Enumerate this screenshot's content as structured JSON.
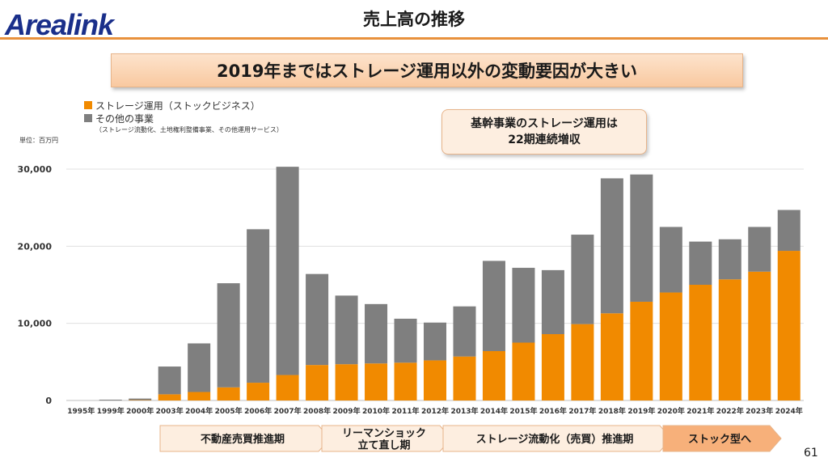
{
  "header": {
    "logo_text": "Arealink",
    "title": "売上高の推移",
    "headline": "2019年まではストレージ運用以外の変動要因が大きい",
    "accent_color": "#e8913c"
  },
  "callout": {
    "line1": "基幹事業のストレージ運用は",
    "line2": "22期連続増収"
  },
  "legend": {
    "storage": "ストレージ運用（ストックビジネス）",
    "other": "その他の事業",
    "other_note": "（ストレージ流動化、土地権利整備事業、その他運用サービス）"
  },
  "unit_label": "単位：百万円",
  "page_number": "61",
  "phases": [
    "不動産売買推進期",
    "リーマンショック\n立て直し期",
    "ストレージ流動化（売買）推進期",
    "ストック型へ"
  ],
  "chart_data": {
    "type": "bar",
    "stacked": true,
    "categories": [
      "1995年",
      "1999年",
      "2000年",
      "2003年",
      "2004年",
      "2005年",
      "2006年",
      "2007年",
      "2008年",
      "2009年",
      "2010年",
      "2011年",
      "2012年",
      "2013年",
      "2014年",
      "2015年",
      "2016年",
      "2017年",
      "2018年",
      "2019年",
      "2020年",
      "2021年",
      "2022年",
      "2023年",
      "2024年"
    ],
    "series": [
      {
        "name": "ストレージ運用（ストックビジネス）",
        "color": "#f18a00",
        "values": [
          0,
          0,
          50,
          800,
          1100,
          1700,
          2300,
          3300,
          4600,
          4700,
          4800,
          4900,
          5200,
          5700,
          6400,
          7500,
          8600,
          9900,
          11300,
          12800,
          14000,
          15000,
          15700,
          16700,
          19400
        ]
      },
      {
        "name": "その他の事業",
        "color": "#7f7f7f",
        "values": [
          0,
          100,
          200,
          3600,
          6300,
          13500,
          19900,
          27000,
          11800,
          8900,
          7700,
          5700,
          4900,
          6500,
          11700,
          9700,
          8300,
          11600,
          17500,
          16500,
          8500,
          5600,
          5200,
          5800,
          5300
        ]
      }
    ],
    "ylim": [
      0,
      30000
    ],
    "yticks": [
      "0",
      "10,000",
      "20,000",
      "30,000"
    ],
    "grid": true,
    "legend_position": "top-left"
  }
}
